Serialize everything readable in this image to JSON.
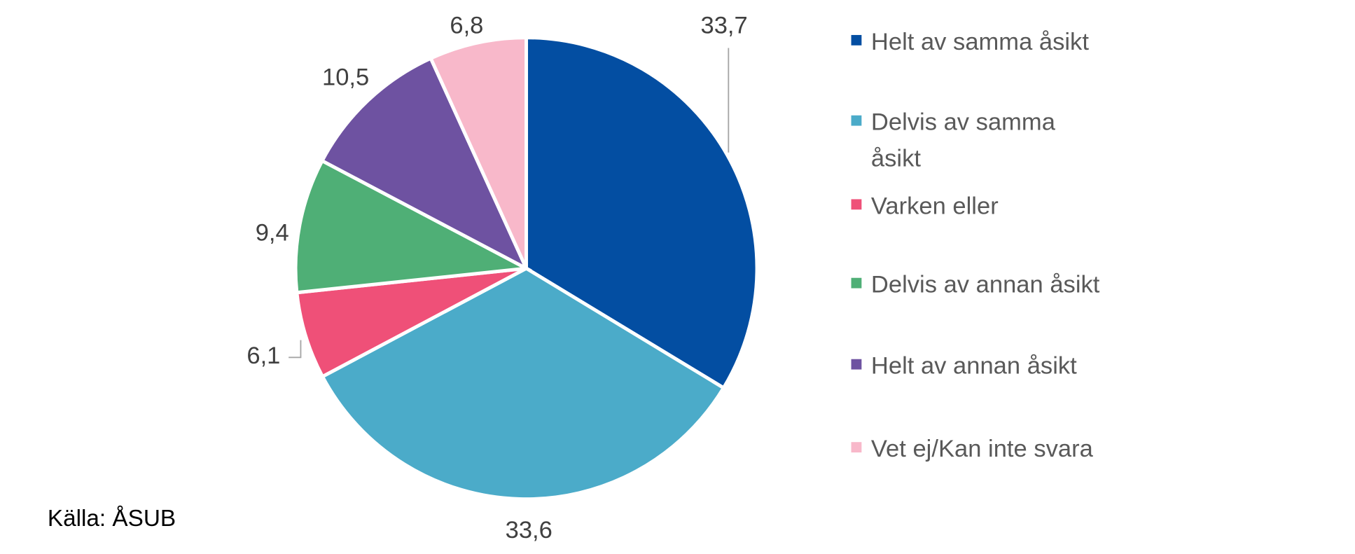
{
  "chart_data": {
    "type": "pie",
    "start": "top",
    "direction": "clockwise",
    "legend_position": "right",
    "slices": [
      {
        "label": "Helt av samma åsikt",
        "legend": [
          "Helt av samma åsikt"
        ],
        "value": 33.7,
        "value_label": "33,7",
        "color": "#034ea2"
      },
      {
        "label": "Delvis av samma åsikt",
        "legend": [
          "Delvis av samma",
          "åsikt"
        ],
        "value": 33.6,
        "value_label": "33,6",
        "color": "#4babc9"
      },
      {
        "label": "Varken eller",
        "legend": [
          "Varken eller"
        ],
        "value": 6.1,
        "value_label": "6,1",
        "color": "#ef5078"
      },
      {
        "label": "Delvis av annan åsikt",
        "legend": [
          "Delvis av annan åsikt"
        ],
        "value": 9.4,
        "value_label": "9,4",
        "color": "#4faf76"
      },
      {
        "label": "Helt av annan åsikt",
        "legend": [
          "Helt av annan åsikt"
        ],
        "value": 10.5,
        "value_label": "10,5",
        "color": "#6e52a1"
      },
      {
        "label": "Vet ej/Kan inte svara",
        "legend": [
          "Vet ej/Kan inte svara"
        ],
        "value": 6.8,
        "value_label": "6,8",
        "color": "#f8b8ca"
      }
    ]
  },
  "source": "Källa: ÅSUB"
}
